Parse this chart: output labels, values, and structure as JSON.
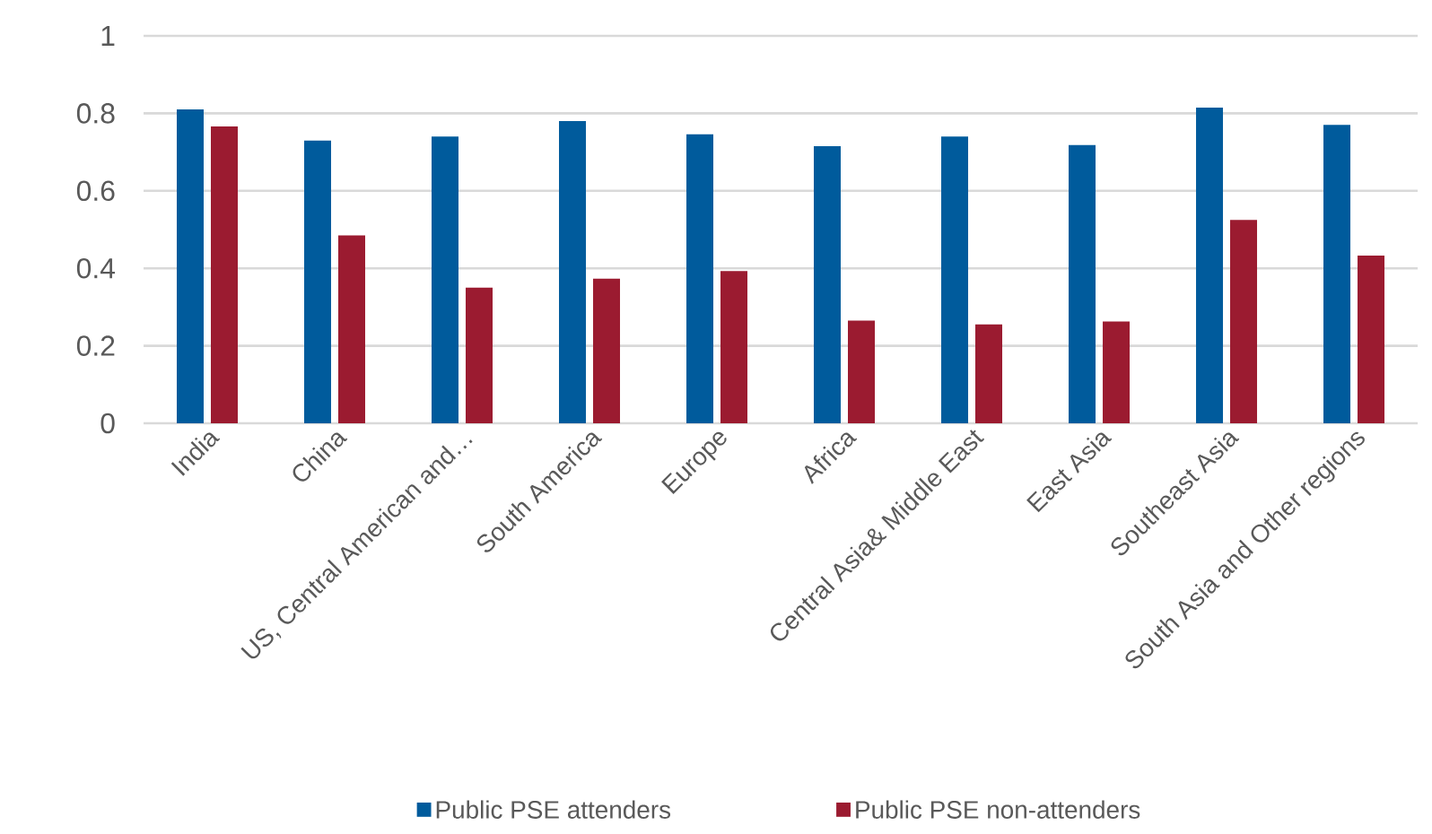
{
  "chart_data": {
    "type": "bar",
    "categories": [
      "India",
      "China",
      "US, Central American and…",
      "South America",
      "Europe",
      "Africa",
      "Central Asia& Middle East",
      "East Asia",
      "Southeast Asia",
      "South Asia and Other regions"
    ],
    "series": [
      {
        "name": "Public PSE attenders",
        "color": "#005b9c",
        "values": [
          0.81,
          0.73,
          0.74,
          0.78,
          0.746,
          0.715,
          0.74,
          0.718,
          0.815,
          0.77
        ]
      },
      {
        "name": "Public PSE non-attenders",
        "color": "#9b1b30",
        "values": [
          0.766,
          0.485,
          0.35,
          0.373,
          0.393,
          0.265,
          0.255,
          0.263,
          0.525,
          0.433
        ]
      }
    ],
    "ylim": [
      0,
      1
    ],
    "yticks": [
      0,
      0.2,
      0.4,
      0.6,
      0.8,
      1
    ],
    "grid": "y",
    "legend": "bottom"
  }
}
